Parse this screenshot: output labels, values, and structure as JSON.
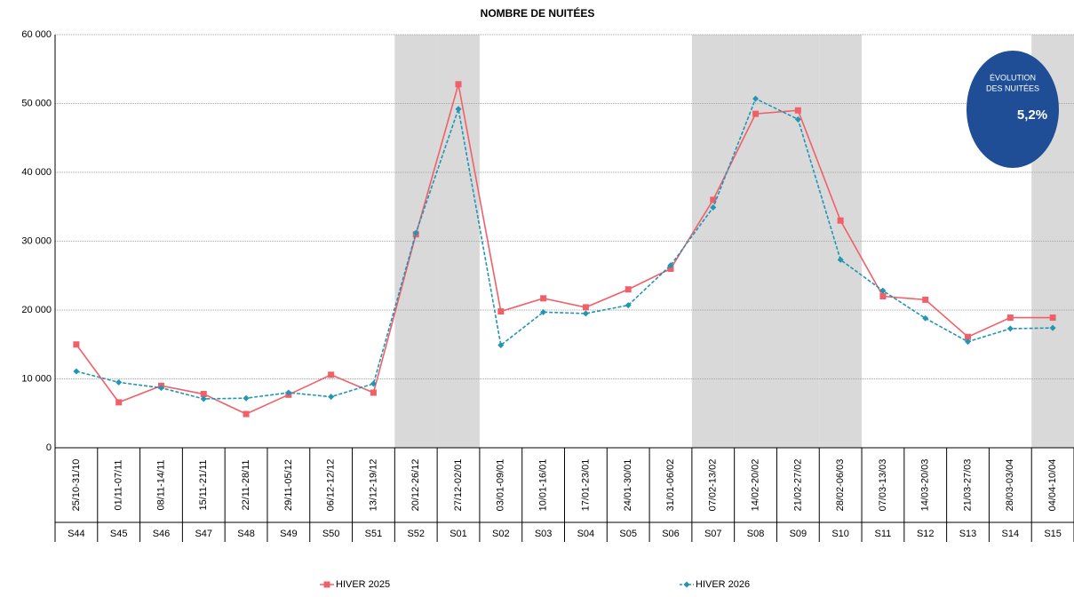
{
  "chart_data": {
    "type": "line",
    "title": "NOMBRE DE NUITÉES",
    "categories": [
      "S44",
      "S45",
      "S46",
      "S47",
      "S48",
      "S49",
      "S50",
      "S51",
      "S52",
      "S01",
      "S02",
      "S03",
      "S04",
      "S05",
      "S06",
      "S07",
      "S08",
      "S09",
      "S10",
      "S11",
      "S12",
      "S13",
      "S14",
      "S15"
    ],
    "date_ranges": [
      "25/10-31/10",
      "01/11-07/11",
      "08/11-14/11",
      "15/11-21/11",
      "22/11-28/11",
      "29/11-05/12",
      "06/12-12/12",
      "13/12-19/12",
      "20/12-26/12",
      "27/12-02/01",
      "03/01-09/01",
      "10/01-16/01",
      "17/01-23/01",
      "24/01-30/01",
      "31/01-06/02",
      "07/02-13/02",
      "14/02-20/02",
      "21/02-27/02",
      "28/02-06/03",
      "07/03-13/03",
      "14/03-20/03",
      "21/03-27/03",
      "28/03-03/04",
      "04/04-10/04"
    ],
    "shaded": [
      false,
      false,
      false,
      false,
      false,
      false,
      false,
      false,
      true,
      true,
      false,
      false,
      false,
      false,
      false,
      true,
      true,
      true,
      true,
      false,
      false,
      false,
      false,
      true
    ],
    "shade_color": "#d9d9d9",
    "series": [
      {
        "name": "HIVER 2025",
        "color": "#f06068",
        "dash": false,
        "marker": "square",
        "values": [
          15000,
          6600,
          9000,
          7800,
          4900,
          7700,
          10600,
          8000,
          31000,
          52800,
          19800,
          21700,
          20400,
          23000,
          26000,
          36000,
          48500,
          49000,
          33000,
          22000,
          21500,
          16100,
          18900,
          18900
        ]
      },
      {
        "name": "HIVER 2026",
        "color": "#2196b4",
        "dash": true,
        "marker": "diamond",
        "values": [
          11100,
          9500,
          8700,
          7100,
          7200,
          8000,
          7400,
          9300,
          31200,
          49200,
          14900,
          19700,
          19500,
          20700,
          26500,
          34900,
          50700,
          47700,
          27300,
          22800,
          18800,
          15400,
          17300,
          17400
        ]
      }
    ],
    "ylim": [
      0,
      60000
    ],
    "yticks": [
      0,
      {
        "value": 10000,
        "label": "10 000"
      },
      {
        "value": 20000,
        "label": "20 000"
      },
      {
        "value": 30000,
        "label": "30 000"
      },
      {
        "value": 40000,
        "label": "40 000"
      },
      {
        "value": 50000,
        "label": "50 000"
      },
      {
        "value": 60000,
        "label": "60 000"
      }
    ],
    "grid": true,
    "annotation": {
      "line1": "ÉVOLUTION",
      "line2": "DES NUITÉES",
      "value": "5,2%",
      "color": "#1f4e96"
    }
  }
}
